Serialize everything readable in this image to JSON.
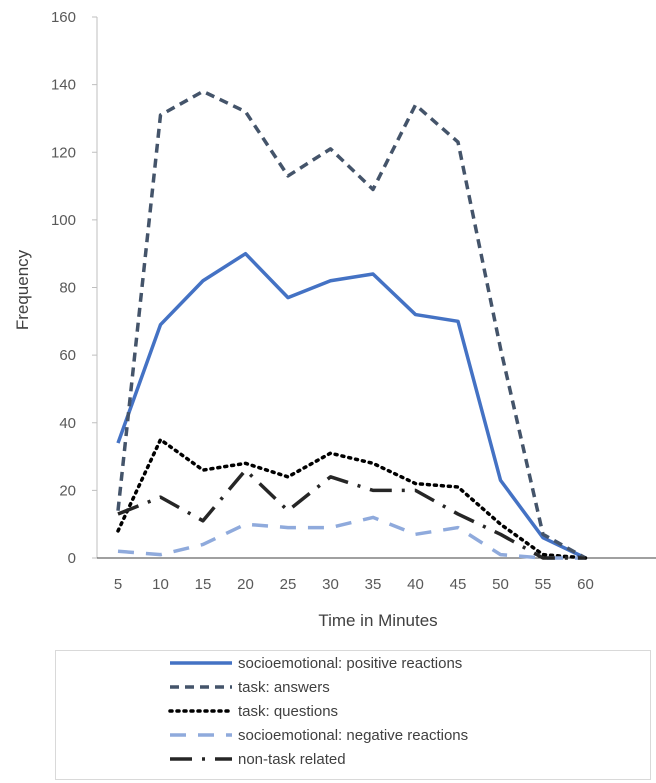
{
  "chart_data": {
    "type": "line",
    "xlabel": "Time in Minutes",
    "ylabel": "Frequency",
    "ylim": [
      0,
      160
    ],
    "yticks": [
      0,
      20,
      40,
      60,
      80,
      100,
      120,
      140,
      160
    ],
    "x": [
      5,
      10,
      15,
      20,
      25,
      30,
      35,
      40,
      45,
      50,
      55,
      60
    ],
    "grid": false,
    "legend_position": "bottom",
    "series": [
      {
        "name": "socioemotional: positive reactions",
        "color": "#4472c4",
        "dash": "solid",
        "values": [
          34,
          69,
          82,
          90,
          77,
          82,
          84,
          72,
          70,
          23,
          6,
          0
        ]
      },
      {
        "name": "task: answers",
        "color": "#44546a",
        "dash": "dash",
        "values": [
          14,
          131,
          138,
          132,
          113,
          121,
          109,
          134,
          123,
          62,
          7,
          0
        ]
      },
      {
        "name": "task: questions",
        "color": "#000000",
        "dash": "dot",
        "values": [
          8,
          35,
          26,
          28,
          24,
          31,
          28,
          22,
          21,
          10,
          1,
          0
        ]
      },
      {
        "name": "socioemotional: negative reactions",
        "color": "#8faadc",
        "dash": "longdash",
        "values": [
          2,
          1,
          4,
          10,
          9,
          9,
          12,
          7,
          9,
          1,
          0,
          0
        ]
      },
      {
        "name": "non-task related",
        "color": "#262626",
        "dash": "dashdot",
        "values": [
          13,
          18,
          11,
          26,
          14,
          24,
          20,
          20,
          13,
          7,
          0,
          0
        ]
      }
    ]
  }
}
